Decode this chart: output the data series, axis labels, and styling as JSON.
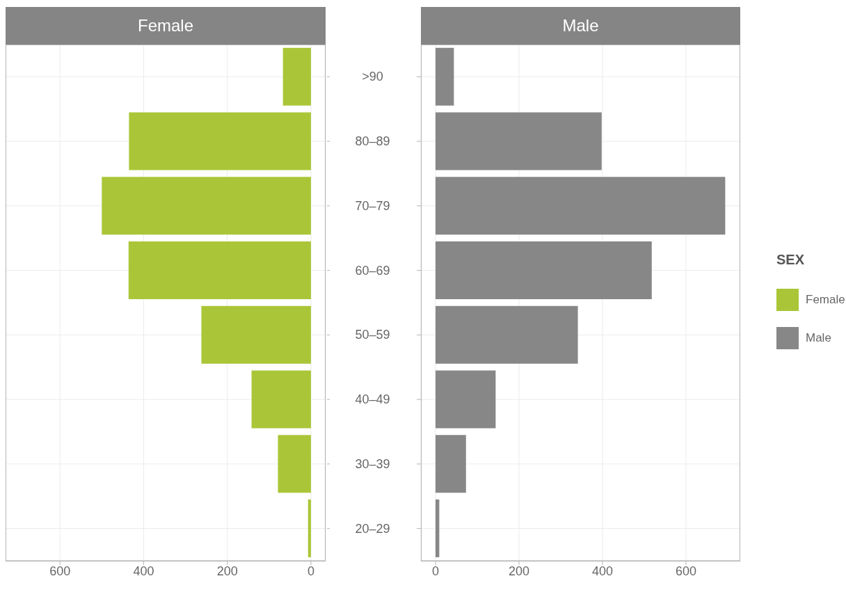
{
  "chart_data": [
    {
      "type": "bar",
      "orientation": "horizontal",
      "title": "Female",
      "categories": [
        null,
        null,
        null,
        null,
        null,
        null,
        null,
        null
      ],
      "series": [
        {
          "name": "Female",
          "color": "#aac638",
          "values": [
            67,
            435,
            500,
            436,
            262,
            142,
            79,
            7
          ]
        }
      ],
      "xlim": [
        730,
        -35
      ],
      "xticks": [
        600,
        400,
        200,
        0
      ],
      "grid": true,
      "tick_labels": "x"
    },
    {
      "type": "bar",
      "orientation": "horizontal",
      "title": "Male",
      "categories": [
        ">90",
        "80–89",
        "70–79",
        "60–69",
        "50–59",
        "40–49",
        "30–39",
        "20–29"
      ],
      "series": [
        {
          "name": "Male",
          "color": "#868786",
          "values": [
            44,
            398,
            694,
            518,
            341,
            144,
            73,
            9
          ]
        }
      ],
      "xlim": [
        -35,
        730
      ],
      "xticks": [
        0,
        200,
        400,
        600
      ],
      "grid": true,
      "legend": "right",
      "legend_title": "SEX"
    }
  ]
}
